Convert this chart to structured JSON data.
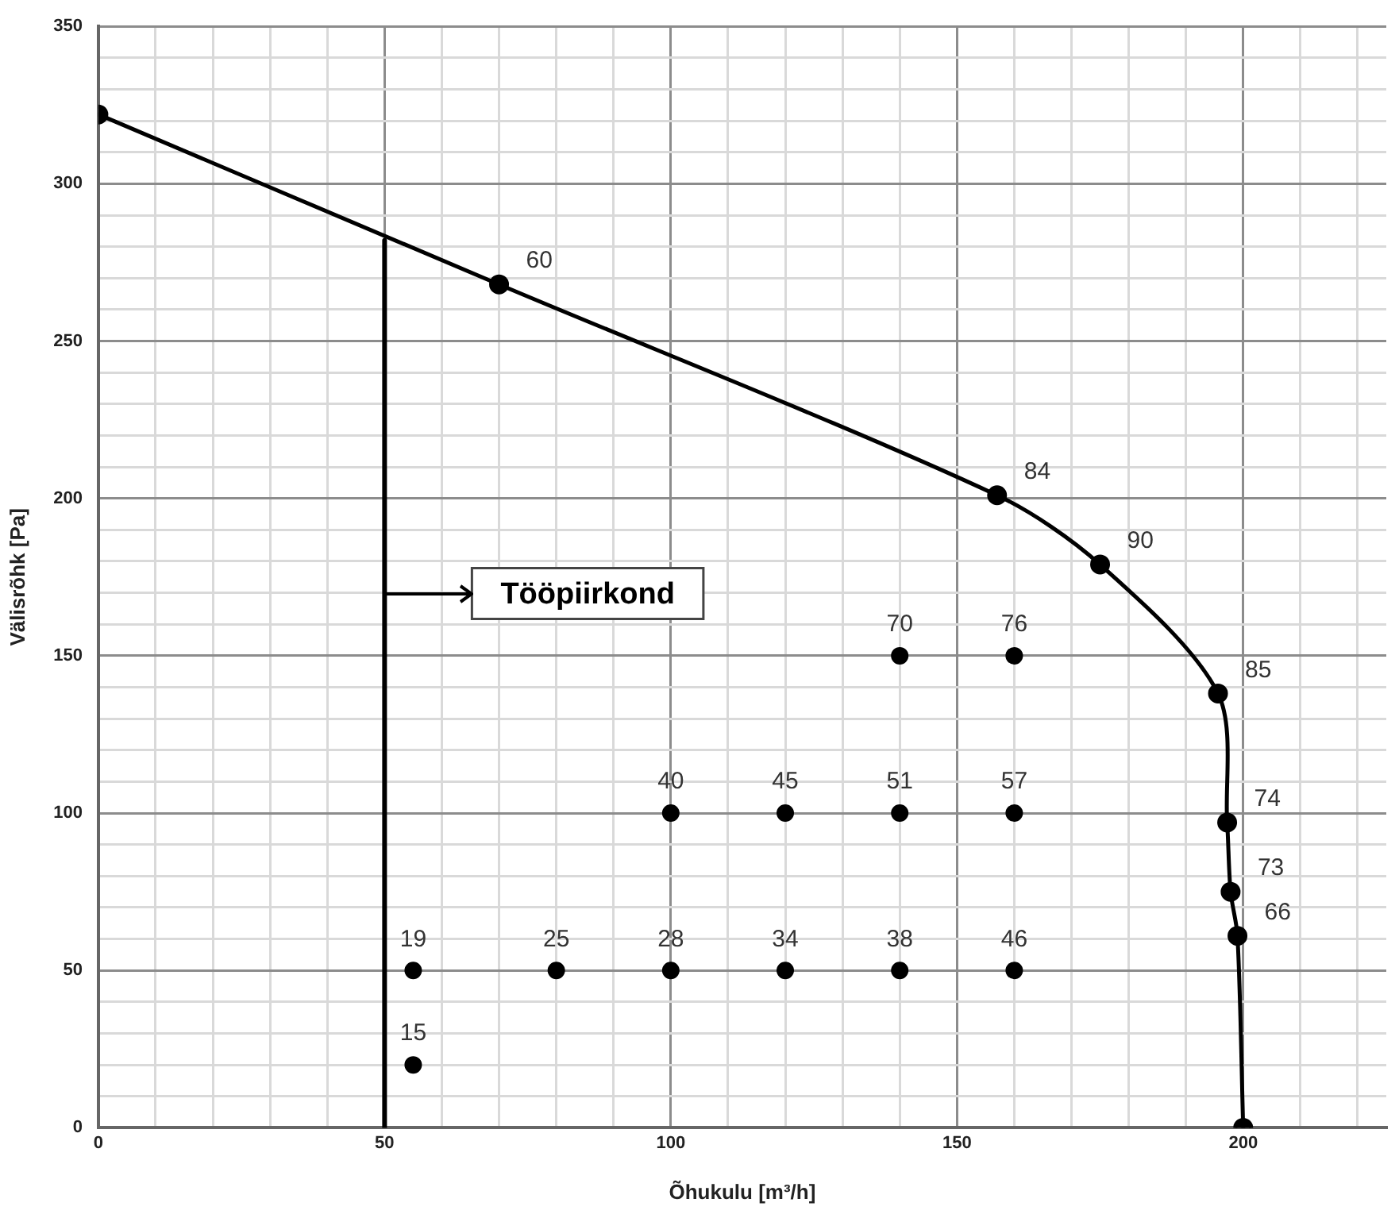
{
  "chart_data": {
    "type": "line",
    "xlabel": "Õhukulu [m³/h]",
    "ylabel": "Välisrõhk [Pa]",
    "xlim": [
      0,
      225
    ],
    "ylim": [
      0,
      350
    ],
    "xticks": [
      0,
      {
        "value": 10,
        "label": null
      },
      {
        "value": 20,
        "label": null
      },
      {
        "value": 30,
        "label": null
      },
      {
        "value": 40,
        "label": null
      },
      50,
      {
        "value": 60,
        "label": null
      },
      {
        "value": 70,
        "label": null
      },
      {
        "value": 80,
        "label": null
      },
      {
        "value": 90,
        "label": null
      },
      100,
      {
        "value": 110,
        "label": null
      },
      {
        "value": 120,
        "label": null
      },
      {
        "value": 130,
        "label": null
      },
      {
        "value": 140,
        "label": null
      },
      150,
      {
        "value": 160,
        "label": null
      },
      {
        "value": 170,
        "label": null
      },
      {
        "value": 180,
        "label": null
      },
      {
        "value": 190,
        "label": null
      },
      200,
      {
        "value": 210,
        "label": null
      },
      {
        "value": 220,
        "label": null
      }
    ],
    "yticks": [
      0,
      {
        "value": 10,
        "label": null
      },
      {
        "value": 20,
        "label": null
      },
      {
        "value": 30,
        "label": null
      },
      {
        "value": 40,
        "label": null
      },
      50,
      {
        "value": 60,
        "label": null
      },
      {
        "value": 70,
        "label": null
      },
      {
        "value": 80,
        "label": null
      },
      {
        "value": 90,
        "label": null
      },
      100,
      {
        "value": 110,
        "label": null
      },
      {
        "value": 120,
        "label": null
      },
      {
        "value": 130,
        "label": null
      },
      {
        "value": 140,
        "label": null
      },
      150,
      {
        "value": 160,
        "label": null
      },
      {
        "value": 170,
        "label": null
      },
      {
        "value": 180,
        "label": null
      },
      {
        "value": 190,
        "label": null
      },
      200,
      {
        "value": 210,
        "label": null
      },
      {
        "value": 220,
        "label": null
      },
      {
        "value": 230,
        "label": null
      },
      {
        "value": 240,
        "label": null
      },
      250,
      {
        "value": 260,
        "label": null
      },
      {
        "value": 270,
        "label": null
      },
      {
        "value": 280,
        "label": null
      },
      {
        "value": 290,
        "label": null
      },
      300,
      {
        "value": 310,
        "label": null
      },
      {
        "value": 320,
        "label": null
      },
      {
        "value": 330,
        "label": null
      },
      {
        "value": 340,
        "label": null
      },
      350
    ],
    "grid": true,
    "legend": false,
    "series": [
      {
        "type": "line",
        "color": "#000000",
        "marker": "circle",
        "x": [
          0,
          70,
          157,
          175,
          195.6,
          197.2,
          197.8,
          199,
          200
        ],
        "values": [
          322,
          268,
          201,
          179,
          138,
          97,
          75,
          61,
          0
        ]
      },
      {
        "type": "scatter",
        "color": "#000000",
        "marker": "circle",
        "x": [
          55,
          55,
          80,
          100,
          120,
          140,
          160,
          100,
          120,
          140,
          160,
          140,
          160
        ],
        "values": [
          20,
          50,
          50,
          50,
          50,
          50,
          50,
          100,
          100,
          100,
          100,
          150,
          150
        ]
      },
      {
        "type": "line",
        "color": "#000000",
        "marker": "none",
        "x": [
          50,
          50
        ],
        "values": [
          0,
          282
        ]
      }
    ],
    "annotations": [
      "Tööpiirkond",
      {
        "text": "60",
        "x": 70,
        "y": 268
      },
      {
        "text": "84",
        "x": 157,
        "y": 201
      },
      {
        "text": "90",
        "x": 175,
        "y": 179
      },
      {
        "text": "85",
        "x": 195.6,
        "y": 138
      },
      {
        "text": "74",
        "x": 197.2,
        "y": 97
      },
      {
        "text": "73",
        "x": 197.8,
        "y": 75
      },
      {
        "text": "66",
        "x": 199,
        "y": 61
      },
      {
        "text": "15",
        "x": 55,
        "y": 20
      },
      {
        "text": "19",
        "x": 55,
        "y": 50
      },
      {
        "text": "25",
        "x": 80,
        "y": 50
      },
      {
        "text": "28",
        "x": 100,
        "y": 50
      },
      {
        "text": "34",
        "x": 120,
        "y": 50
      },
      {
        "text": "38",
        "x": 140,
        "y": 50
      },
      {
        "text": "46",
        "x": 160,
        "y": 50
      },
      {
        "text": "40",
        "x": 100,
        "y": 100
      },
      {
        "text": "45",
        "x": 120,
        "y": 100
      },
      {
        "text": "51",
        "x": 140,
        "y": 100
      },
      {
        "text": "57",
        "x": 160,
        "y": 100
      },
      {
        "text": "70",
        "x": 140,
        "y": 150
      },
      {
        "text": "76",
        "x": 160,
        "y": 150
      }
    ]
  }
}
